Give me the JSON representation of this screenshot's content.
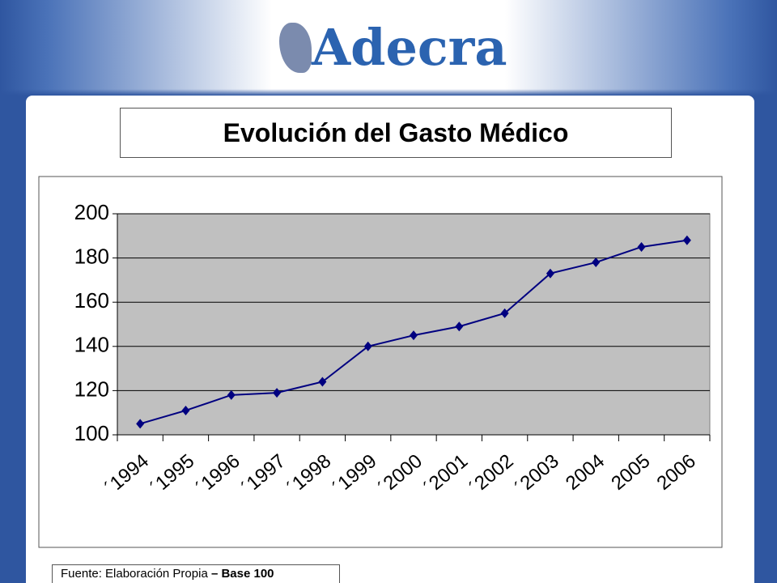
{
  "header": {
    "logo": "Adecra"
  },
  "chart_data": {
    "type": "line",
    "title": "Evolución del Gasto Médico",
    "categories": [
      "´1994",
      "´1995",
      "´1996",
      "´1997",
      "´1998",
      "´1999",
      "´2000",
      "´2001",
      "´2002",
      "´2003",
      "2004",
      "2005",
      "2006"
    ],
    "values": [
      105,
      111,
      118,
      119,
      124,
      140,
      145,
      149,
      155,
      173,
      178,
      185,
      188
    ],
    "color": "#000080",
    "plot_background": "#c0c0c0",
    "grid": true,
    "ylim": [
      100,
      200
    ],
    "yticks": [
      100,
      120,
      140,
      160,
      180,
      200
    ]
  },
  "footer": {
    "source": "Fuente: Elaboración Propia",
    "emphasis": "– Base 100"
  }
}
